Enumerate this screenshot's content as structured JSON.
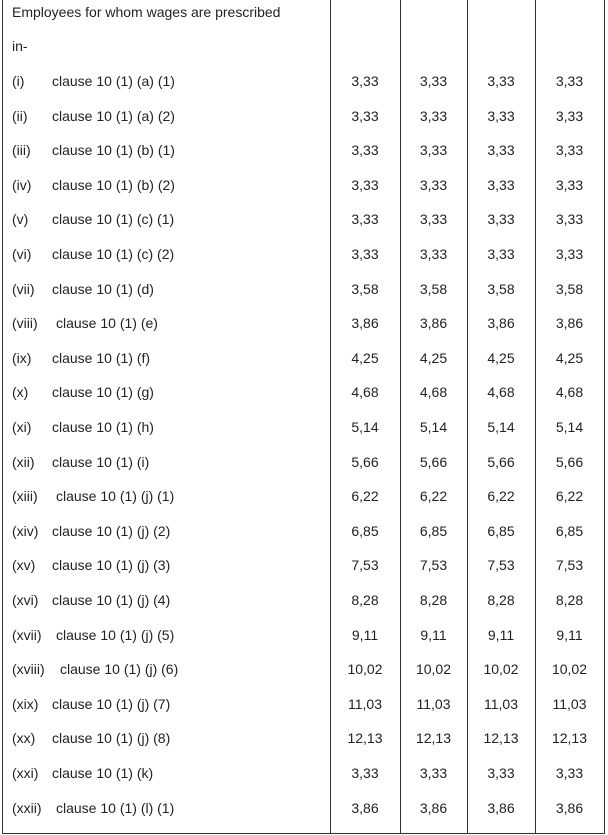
{
  "header": {
    "title": "Employees for whom wages are prescribed",
    "subtitle": "in-"
  },
  "table": {
    "rows": [
      [
        "(i)",
        "clause 10 (1) (a) (1)",
        "3,33",
        "3,33",
        "3,33",
        "3,33"
      ],
      [
        "(ii)",
        "clause 10 (1) (a) (2)",
        "3,33",
        "3,33",
        "3,33",
        "3,33"
      ],
      [
        "(iii)",
        "clause 10 (1) (b) (1)",
        "3,33",
        "3,33",
        "3,33",
        "3,33"
      ],
      [
        "(iv)",
        "clause 10 (1) (b) (2)",
        "3,33",
        "3,33",
        "3,33",
        "3,33"
      ],
      [
        "(v)",
        "clause 10 (1) (c) (1)",
        "3,33",
        "3,33",
        "3,33",
        "3,33"
      ],
      [
        "(vi)",
        "clause 10 (1) (c) (2)",
        "3,33",
        "3,33",
        "3,33",
        "3,33"
      ],
      [
        "(vii)",
        "clause 10 (1) (d)",
        "3,58",
        "3,58",
        "3,58",
        "3,58"
      ],
      [
        "(viii)",
        "clause 10 (1) (e)",
        "3,86",
        "3,86",
        "3,86",
        "3,86"
      ],
      [
        "(ix)",
        "clause 10 (1) (f)",
        "4,25",
        "4,25",
        "4,25",
        "4,25"
      ],
      [
        "(x)",
        "clause 10 (1) (g)",
        "4,68",
        "4,68",
        "4,68",
        "4,68"
      ],
      [
        "(xi)",
        "clause 10 (1) (h)",
        "5,14",
        "5,14",
        "5,14",
        "5,14"
      ],
      [
        "(xii)",
        "clause 10 (1) (i)",
        "5,66",
        "5,66",
        "5,66",
        "5,66"
      ],
      [
        "(xiii)",
        "clause 10 (1) (j) (1)",
        "6,22",
        "6,22",
        "6,22",
        "6,22"
      ],
      [
        "(xiv)",
        "clause 10 (1) (j) (2)",
        "6,85",
        "6,85",
        "6,85",
        "6,85"
      ],
      [
        "(xv)",
        "clause 10 (1) (j) (3)",
        "7,53",
        "7,53",
        "7,53",
        "7,53"
      ],
      [
        "(xvi)",
        "clause 10 (1) (j) (4)",
        "8,28",
        "8,28",
        "8,28",
        "8,28"
      ],
      [
        "(xvii)",
        "clause 10 (1) (j) (5)",
        "9,11",
        "9,11",
        "9,11",
        "9,11"
      ],
      [
        "(xviii)",
        "clause 10 (1) (j) (6)",
        "10,02",
        "10,02",
        "10,02",
        "10,02"
      ],
      [
        "(xix)",
        "clause 10 (1) (j) (7)",
        "11,03",
        "11,03",
        "11,03",
        "11,03"
      ],
      [
        "(xx)",
        "clause 10 (1) (j) (8)",
        "12,13",
        "12,13",
        "12,13",
        "12,13"
      ],
      [
        "(xxi)",
        "clause 10 (1) (k)",
        "3,33",
        "3,33",
        "3,33",
        "3,33"
      ],
      [
        "(xxii)",
        "clause 10 (1) (l) (1)",
        "3,86",
        "3,86",
        "3,86",
        "3,86"
      ]
    ]
  }
}
